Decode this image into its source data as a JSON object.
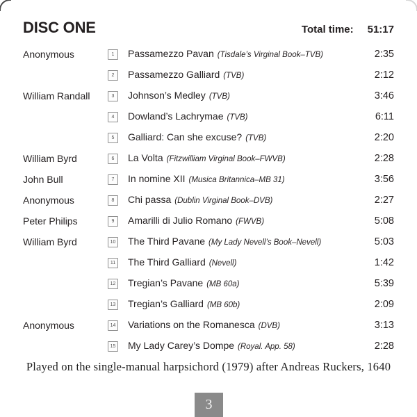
{
  "header": {
    "title": "DISC ONE",
    "total_time_label": "Total time:",
    "total_time_value": "51:17"
  },
  "tracks": [
    {
      "composer": "Anonymous",
      "num": "1",
      "title": "Passamezzo Pavan",
      "source": "(Tisdale’s Virginal Book–TVB)",
      "time": "2:35"
    },
    {
      "composer": "",
      "num": "2",
      "title": "Passamezzo Galliard",
      "source": "(TVB)",
      "time": "2:12"
    },
    {
      "composer": "William Randall",
      "num": "3",
      "title": "Johnson’s Medley",
      "source": "(TVB)",
      "time": "3:46"
    },
    {
      "composer": "",
      "num": "4",
      "title": "Dowland’s Lachrymae",
      "source": "(TVB)",
      "time": "6:11"
    },
    {
      "composer": "",
      "num": "5",
      "title": "Galliard: Can she excuse?",
      "source": "(TVB)",
      "time": "2:20"
    },
    {
      "composer": "William Byrd",
      "num": "6",
      "title": "La Volta",
      "source": "(Fitzwilliam Virginal Book–FWVB)",
      "time": "2:28"
    },
    {
      "composer": "John Bull",
      "num": "7",
      "title": "In nomine XII",
      "source": "(Musica Britannica–MB 31)",
      "time": "3:56"
    },
    {
      "composer": "Anonymous",
      "num": "8",
      "title": "Chi passa",
      "source": "(Dublin Virginal Book–DVB)",
      "time": "2:27"
    },
    {
      "composer": "Peter Philips",
      "num": "9",
      "title": "Amarilli di Julio Romano",
      "source": "(FWVB)",
      "time": "5:08"
    },
    {
      "composer": "William Byrd",
      "num": "10",
      "title": "The Third Pavane",
      "source": "(My Lady Nevell’s Book–Nevell)",
      "time": "5:03"
    },
    {
      "composer": "",
      "num": "11",
      "title": "The Third Galliard",
      "source": "(Nevell)",
      "time": "1:42"
    },
    {
      "composer": "",
      "num": "12",
      "title": "Tregian’s Pavane",
      "source": "(MB 60a)",
      "time": "5:39"
    },
    {
      "composer": "",
      "num": "13",
      "title": "Tregian’s Galliard",
      "source": "(MB 60b)",
      "time": "2:09"
    },
    {
      "composer": "Anonymous",
      "num": "14",
      "title": "Variations on the Romanesca",
      "source": "(DVB)",
      "time": "3:13"
    },
    {
      "composer": "",
      "num": "15",
      "title": "My Lady Carey’s Dompe",
      "source": "(Royal. App. 58)",
      "time": "2:28"
    }
  ],
  "footer": {
    "note": "Played on the single-manual harpsichord (1979) after Andreas Ruckers, 1640",
    "page_number": "3"
  },
  "colors": {
    "text": "#231f20",
    "trackbox_border": "#8e8e8e",
    "trackbox_number": "#4f4f4f",
    "page_box_bg": "#8a8a8a",
    "page_number_text": "#f5f5f5"
  }
}
